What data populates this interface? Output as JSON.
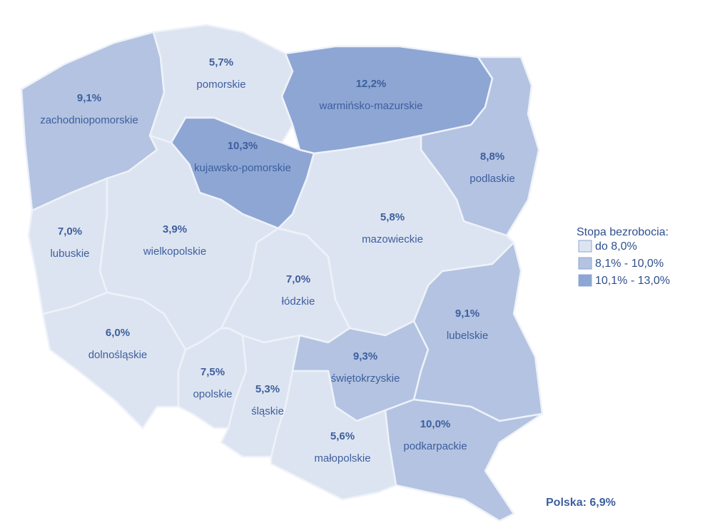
{
  "map_data": {
    "regions": [
      {
        "name": "zachodniopomorskie",
        "value": 9.1,
        "value_label": "9,1%",
        "color": "#b3c3e1"
      },
      {
        "name": "pomorskie",
        "value": 5.7,
        "value_label": "5,7%",
        "color": "#dde4f1"
      },
      {
        "name": "warmińsko-mazurskie",
        "value": 12.2,
        "value_label": "12,2%",
        "color": "#8ea6d4"
      },
      {
        "name": "podlaskie",
        "value": 8.8,
        "value_label": "8,8%",
        "color": "#b3c3e1"
      },
      {
        "name": "kujawsko-pomorskie",
        "value": 10.3,
        "value_label": "10,3%",
        "color": "#8ea6d4"
      },
      {
        "name": "mazowieckie",
        "value": 5.8,
        "value_label": "5,8%",
        "color": "#dde4f1"
      },
      {
        "name": "lubuskie",
        "value": 7.0,
        "value_label": "7,0%",
        "color": "#dde4f1"
      },
      {
        "name": "wielkopolskie",
        "value": 3.9,
        "value_label": "3,9%",
        "color": "#dde4f1"
      },
      {
        "name": "łódzkie",
        "value": 7.0,
        "value_label": "7,0%",
        "color": "#dde4f1"
      },
      {
        "name": "dolnośląskie",
        "value": 6.0,
        "value_label": "6,0%",
        "color": "#dde4f1"
      },
      {
        "name": "opolskie",
        "value": 7.5,
        "value_label": "7,5%",
        "color": "#dde4f1"
      },
      {
        "name": "śląskie",
        "value": 5.3,
        "value_label": "5,3%",
        "color": "#dde4f1"
      },
      {
        "name": "świętokrzyskie",
        "value": 9.3,
        "value_label": "9,3%",
        "color": "#b3c3e1"
      },
      {
        "name": "lubelskie",
        "value": 9.1,
        "value_label": "9,1%",
        "color": "#b3c3e1"
      },
      {
        "name": "małopolskie",
        "value": 5.6,
        "value_label": "5,6%",
        "color": "#dde4f1"
      },
      {
        "name": "podkarpackie",
        "value": 10.0,
        "value_label": "10,0%",
        "color": "#b3c3e1"
      }
    ],
    "legend": {
      "title": "Stopa bezrobocia:",
      "items": [
        {
          "label": "do 8,0%",
          "color": "#dde4f1"
        },
        {
          "label": "8,1% - 10,0%",
          "color": "#b3c3e1"
        },
        {
          "label": "10,1% - 13,0%",
          "color": "#8ea6d4"
        }
      ]
    },
    "national": "Polska: 6,9%"
  }
}
